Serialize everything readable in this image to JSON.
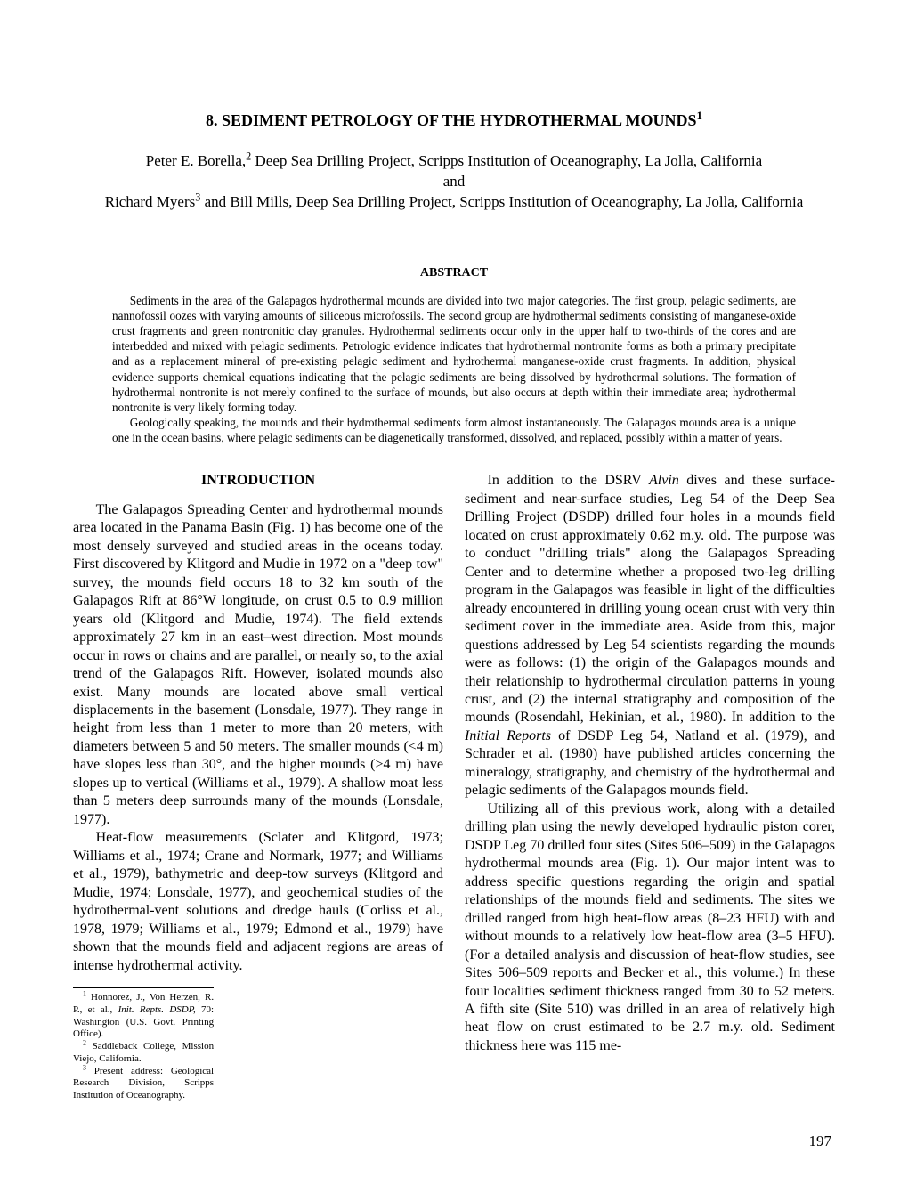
{
  "title": "8. SEDIMENT PETROLOGY OF THE HYDROTHERMAL MOUNDS",
  "title_sup": "1",
  "authors_line1_pre": "Peter E. Borella,",
  "authors_line1_sup": "2",
  "authors_line1_post": " Deep Sea Drilling Project, Scripps Institution of Oceanography, La Jolla, California",
  "authors_and": "and",
  "authors_line2_pre": "Richard Myers",
  "authors_line2_sup": "3",
  "authors_line2_post": " and Bill Mills, Deep Sea Drilling Project, Scripps Institution of Oceanography, La Jolla, California",
  "abstract_heading": "ABSTRACT",
  "abstract_p1": "Sediments in the area of the Galapagos hydrothermal mounds are divided into two major categories. The first group, pelagic sediments, are nannofossil oozes with varying amounts of siliceous microfossils. The second group are hydrothermal sediments consisting of manganese-oxide crust fragments and green nontronitic clay granules. Hydrothermal sediments occur only in the upper half to two-thirds of the cores and are interbedded and mixed with pelagic sediments. Petrologic evidence indicates that hydrothermal nontronite forms as both a primary precipitate and as a replacement mineral of pre-existing pelagic sediment and hydrothermal manganese-oxide crust fragments. In addition, physical evidence supports chemical equations indicating that the pelagic sediments are being dissolved by hydrothermal solutions. The formation of hydrothermal nontronite is not merely confined to the surface of mounds, but also occurs at depth within their immediate area; hydrothermal nontronite is very likely forming today.",
  "abstract_p2": "Geologically speaking, the mounds and their hydrothermal sediments form almost instantaneously. The Galapagos mounds area is a unique one in the ocean basins, where pelagic sediments can be diagenetically transformed, dissolved, and replaced, possibly within a matter of years.",
  "intro_heading": "INTRODUCTION",
  "body_p1": "The Galapagos Spreading Center and hydrothermal mounds area located in the Panama Basin (Fig. 1) has become one of the most densely surveyed and studied areas in the oceans today. First discovered by Klitgord and Mudie in 1972 on a \"deep tow\" survey, the mounds field occurs 18 to 32 km south of the Galapagos Rift at 86°W longitude, on crust 0.5 to 0.9 million years old (Klitgord and Mudie, 1974). The field extends approximately 27 km in an east–west direction. Most mounds occur in rows or chains and are parallel, or nearly so, to the axial trend of the Galapagos Rift. However, isolated mounds also exist. Many mounds are located above small vertical displacements in the basement (Lonsdale, 1977). They range in height from less than 1 meter to more than 20 meters, with diameters between 5 and 50 meters. The smaller mounds (<4 m) have slopes less than 30°, and the higher mounds (>4 m) have slopes up to vertical (Williams et al., 1979). A shallow moat less than 5 meters deep surrounds many of the mounds (Lonsdale, 1977).",
  "body_p2": "Heat-flow measurements (Sclater and Klitgord, 1973; Williams et al., 1974; Crane and Normark, 1977; and Williams et al., 1979), bathymetric and deep-tow surveys (Klitgord and Mudie, 1974; Lonsdale, 1977), and geochemical studies of the hydrothermal-vent solutions and dredge hauls (Corliss et al., 1978, 1979; Williams et al., 1979; Edmond et al., 1979) have shown that the mounds field and adjacent regions are areas of intense hydrothermal activity.",
  "body_p3_a": "In addition to the DSRV ",
  "body_p3_em": "Alvin",
  "body_p3_b": " dives and these surface-sediment and near-surface studies, Leg 54 of the Deep Sea Drilling Project (DSDP) drilled four holes in a mounds field located on crust approximately 0.62 m.y. old. The purpose was to conduct \"drilling trials\" along the Galapagos Spreading Center and to determine whether a proposed two-leg drilling program in the Galapagos was feasible in light of the difficulties already encountered in drilling young ocean crust with very thin sediment cover in the immediate area. Aside from this, major questions addressed by Leg 54 scientists regarding the mounds were as follows: (1) the origin of the Galapagos mounds and their relationship to hydrothermal circulation patterns in young crust, and (2) the internal stratigraphy and composition of the mounds (Rosendahl, Hekinian, et al., 1980). In addition to the ",
  "body_p3_em2": "Initial Reports",
  "body_p3_c": " of DSDP Leg 54, Natland et al. (1979), and Schrader et al. (1980) have published articles concerning the mineralogy, stratigraphy, and chemistry of the hydrothermal and pelagic sediments of the Galapagos mounds field.",
  "body_p4": "Utilizing all of this previous work, along with a detailed drilling plan using the newly developed hydraulic piston corer, DSDP Leg 70 drilled four sites (Sites 506–509) in the Galapagos hydrothermal mounds area (Fig. 1). Our major intent was to address specific questions regarding the origin and spatial relationships of the mounds field and sediments. The sites we drilled ranged from high heat-flow areas (8–23 HFU) with and without mounds to a relatively low heat-flow area (3–5 HFU). (For a detailed analysis and discussion of heat-flow studies, see Sites 506–509 reports and Becker et al., this volume.) In these four localities sediment thickness ranged from 30 to 52 meters. A fifth site (Site 510) was drilled in an area of relatively high heat flow on crust estimated to be 2.7 m.y. old. Sediment thickness here was 115 me-",
  "fn1_sup": "1",
  "fn1_a": " Honnorez, J., Von Herzen, R. P., et al., ",
  "fn1_em": "Init. Repts. DSDP,",
  "fn1_b": " 70: Washington (U.S. Govt. Printing Office).",
  "fn2_sup": "2",
  "fn2": " Saddleback College, Mission Viejo, California.",
  "fn3_sup": "3",
  "fn3": " Present address: Geological Research Division, Scripps Institution of Oceanography.",
  "page_number": "197"
}
